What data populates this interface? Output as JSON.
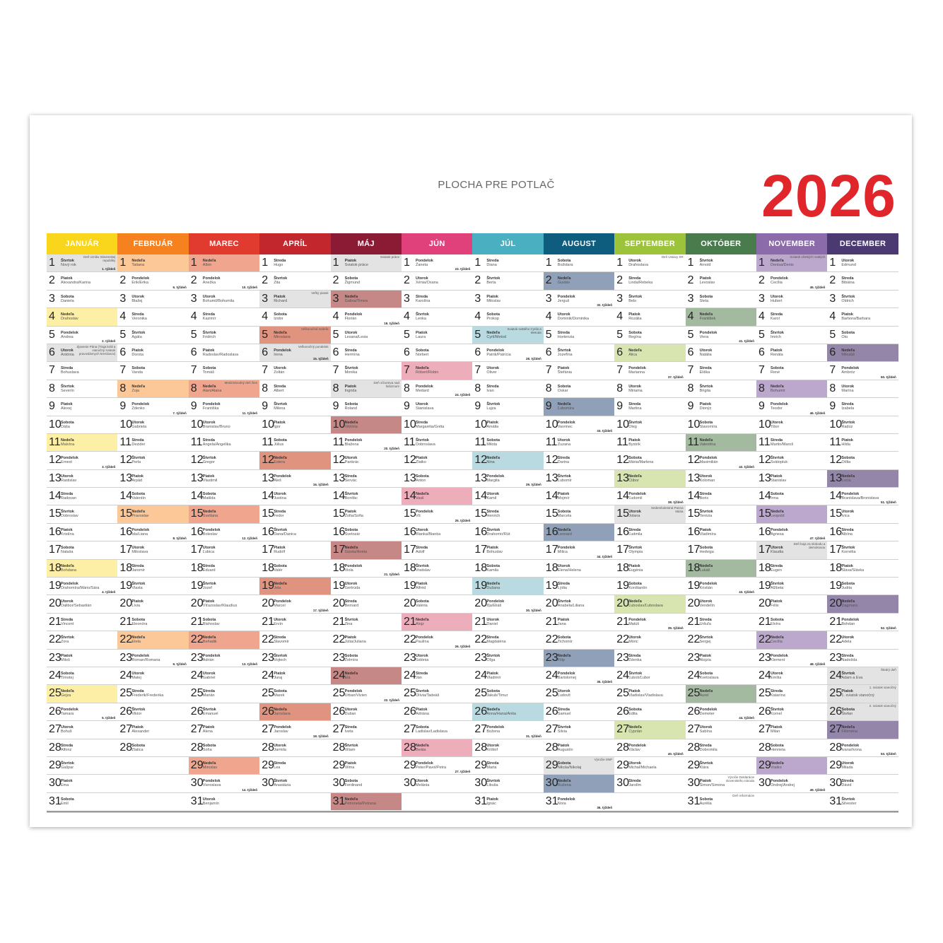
{
  "title": "PLOCHA PRE POTLAČ",
  "year": "2026",
  "week_label": "týždeň",
  "weekdays": [
    "Nedeľa",
    "Pondelok",
    "Utorok",
    "Streda",
    "Štvrtok",
    "Piatok",
    "Sobota"
  ],
  "holiday_color": "#e3e3e3",
  "months": [
    {
      "name": "JANUÁR",
      "color": "#f9d51b",
      "sunday": "#fdefa6",
      "names": [
        "Nový rok",
        "Alexandra/Karina",
        "Daniela",
        "Drahoslav",
        "Andrea",
        "Antónia",
        "Bohuslava",
        "Severín",
        "Alexej",
        "Dáša",
        "Malvína",
        "Ernest",
        "Rastislav",
        "Radovan",
        "Dobroslav",
        "Kristína",
        "Nataša",
        "Bohdana",
        "Drahomíra/Mário/Sára",
        "Dalibor/Sebastián",
        "Vincent",
        "Zora",
        "Miloš",
        "Timotej",
        "Gejza",
        "Tamara",
        "Bohuš",
        "Alfonz",
        "Gašpar",
        "Ema",
        "Emil"
      ],
      "holidays": [
        1,
        6
      ],
      "notes": {
        "1": "Deň vzniku Slovenskej republiky",
        "6": "Zjavenie Pána (Traja králi a vianočný sviatok pravoslávnych kresťanov)"
      }
    },
    {
      "name": "FEBRUÁR",
      "color": "#f5821f",
      "sunday": "#fcc898",
      "names": [
        "Tatiana",
        "Erik/Erika",
        "Blažej",
        "Veronika",
        "Agáta",
        "Dorota",
        "Vanda",
        "Zoja",
        "Zdenko",
        "Gabriela",
        "Dezider",
        "Perla",
        "Arpád",
        "Valentín",
        "Pravoslav",
        "Ida/Liana",
        "Miloslava",
        "Jaromír",
        "Vlasta",
        "Lívia",
        "Eleonóra",
        "Etela",
        "Roman/Romana",
        "Matej",
        "Frederik/Frederika",
        "Viktor",
        "Alexander",
        "Zlatica"
      ],
      "holidays": [],
      "notes": {}
    },
    {
      "name": "MAREC",
      "color": "#e03b2e",
      "sunday": "#efa58e",
      "names": [
        "Albín",
        "Anežka",
        "Bohumil/Bohumila",
        "Kazimír",
        "Fridrich",
        "Radoslav/Radoslava",
        "Tomáš",
        "Alan/Alana",
        "Františka",
        "Branislav/Bruno",
        "Angela/Angelika",
        "Gregor",
        "Vlastimil",
        "Matilda",
        "Svetlana",
        "Boleslav",
        "Ľubica",
        "Eduard",
        "Jozef",
        "Víťazoslav/Klaudius",
        "Blahoslav",
        "Beňadik",
        "Adrián",
        "Gabriel",
        "Marián",
        "Emanuel",
        "Alena",
        "Soňa",
        "Miroslav",
        "Vieroslava",
        "Benjamín"
      ],
      "holidays": [],
      "notes": {
        "8": "Medzinárodný deň žien"
      }
    },
    {
      "name": "APRÍL",
      "color": "#c1272d",
      "sunday": "#e0937e",
      "names": [
        "Hugo",
        "Zita",
        "Richard",
        "Izidor",
        "Miroslava",
        "Irena",
        "Zoltán",
        "Albert",
        "Milena",
        "Igor",
        "Július",
        "Estera",
        "Aleš",
        "Justína",
        "Fedor",
        "Dana/Danica",
        "Rudolf",
        "Valér",
        "Jela",
        "Marcel",
        "Ervín",
        "Slavomír",
        "Vojtech",
        "Juraj",
        "Marek",
        "Jaroslava",
        "Jaroslav",
        "Jarmila",
        "Lea",
        "Anastázia"
      ],
      "holidays": [
        3,
        6
      ],
      "notes": {
        "3": "Veľký piatok",
        "5": "Veľkonočná nedeľa",
        "6": "Veľkonočný pondelok"
      }
    },
    {
      "name": "MÁJ",
      "color": "#8b1a35",
      "sunday": "#c68886",
      "names": [
        "Sviatok práce",
        "Žigmund",
        "Galina/Timea",
        "Florián",
        "Lesana/Lesia",
        "Hermína",
        "Monika",
        "Ingrida",
        "Roland",
        "Viktória",
        "Blažena",
        "Pankrác",
        "Servác",
        "Bonifác",
        "Žofia/Sofia",
        "Svetozár",
        "Gizela/Aneta",
        "Viola",
        "Gertrúda",
        "Bernard",
        "Zina",
        "Júlia/Juliana",
        "Želmíra",
        "Ela",
        "Urban/Vivien",
        "Dušan",
        "Iveta",
        "Viliam",
        "Vilma",
        "Ferdinand",
        "Petronela/Petrana"
      ],
      "holidays": [
        1,
        8
      ],
      "notes": {
        "1": "Sviatok práce",
        "8": "Deň víťazstva nad fašizmom"
      }
    },
    {
      "name": "JÚN",
      "color": "#e0417a",
      "sunday": "#eeadbb",
      "names": [
        "Žaneta",
        "Xénia/Oxana",
        "Karolína",
        "Lenka",
        "Laura",
        "Norbert",
        "Róbert/Robin",
        "Medard",
        "Stanislava",
        "Margaréta/Gréta",
        "Dobroslava",
        "Zlatko",
        "Anton",
        "Vasil",
        "Vít",
        "Blanka/Bianka",
        "Adolf",
        "Vratislav",
        "Alfréd",
        "Valéria",
        "Alojz",
        "Paulína",
        "Sidónia",
        "Ján",
        "Olívia/Tadeáš",
        "Adriána",
        "Ladislav/Ladislava",
        "Beáta",
        "Peter/Pavol/Petra",
        "Melánia"
      ],
      "holidays": [],
      "notes": {}
    },
    {
      "name": "JÚL",
      "color": "#4aafc0",
      "sunday": "#b8dae0",
      "names": [
        "Diana",
        "Berta",
        "Miloslav",
        "Prokop",
        "Cyril/Metod",
        "Patrik/Patrícia",
        "Oliver",
        "Ivan",
        "Lujza",
        "Amália",
        "Milota",
        "Nina",
        "Margita",
        "Kamil",
        "Henrich",
        "Drahomír/Rút",
        "Bohuslav",
        "Kamila",
        "Dušana",
        "Iľja/Eliáš",
        "Daniel",
        "Magdaléna",
        "Oľga",
        "Vladimír",
        "Jakub/Timur",
        "Anna/Hana/Anita",
        "Božena",
        "Krištof",
        "Marta",
        "Libuša",
        "Ignác"
      ],
      "holidays": [],
      "notes": {
        "5": "Sviatok svätého Cyrila a Metoda"
      }
    },
    {
      "name": "AUGUST",
      "color": "#0f5d7e",
      "sunday": "#8fa0b8",
      "names": [
        "Božidara",
        "Gustáv",
        "Jerguš",
        "Dominik/Dominika",
        "Hortenzia",
        "Jozefína",
        "Štefánia",
        "Oskar",
        "Ľubomíra",
        "Vavrinec",
        "Zuzana",
        "Darina",
        "Ľubomír",
        "Mojmír",
        "Marcela",
        "Leonard",
        "Milica",
        "Elena/Helena",
        "Lýdia",
        "Anabela/Liliana",
        "Jana",
        "Tichomír",
        "Filip",
        "Bartolomej",
        "Ľudovít",
        "Samuel",
        "Silvia",
        "Augustín",
        "Nikola/Nikolaj",
        "Ružena",
        "Nora"
      ],
      "holidays": [
        29
      ],
      "notes": {
        "29": "Výročie SNP"
      }
    },
    {
      "name": "SEPTEMBER",
      "color": "#9dc33b",
      "sunday": "#d8e5b1",
      "names": [
        "Drahoslava",
        "Linda/Rebeka",
        "Belo",
        "Rozália",
        "Regína",
        "Alica",
        "Marianna",
        "Miriama",
        "Martina",
        "Oleg",
        "Bystrík",
        "Mária/Marlena",
        "Ctibor",
        "Ľudomil",
        "Jolana",
        "Ľudmila",
        "Olympia",
        "Eugénia",
        "Konštantín",
        "Ľuboslav/Ľuboslava",
        "Matúš",
        "Móric",
        "Zdenka",
        "Ľuboš/Ľubor",
        "Vladislav/Vladislava",
        "Edita",
        "Cyprián",
        "Václav",
        "Michal/Michaela",
        "Jarolím"
      ],
      "holidays": [
        15
      ],
      "notes": {
        "1": "Deň Ústavy SR",
        "15": "Sedembolestná Panna Mária"
      }
    },
    {
      "name": "OKTÓBER",
      "color": "#4a7b4c",
      "sunday": "#a3b9a0",
      "names": [
        "Arnold",
        "Levoslav",
        "Stela",
        "František",
        "Viera",
        "Natália",
        "Eliška",
        "Brigita",
        "Dionýz",
        "Slavomíra",
        "Valentína",
        "Maximilián",
        "Koloman",
        "Boris",
        "Terézia",
        "Vladimíra",
        "Hedviga",
        "Lukáš",
        "Kristián",
        "Vendelín",
        "Uršuľa",
        "Sergej",
        "Alojzia",
        "Kvetoslava",
        "Aurel",
        "Demeter",
        "Sabína",
        "Dobromila",
        "Klára",
        "Šimon/Simona",
        "Aurélia"
      ],
      "holidays": [],
      "notes": {
        "30": "Výročie Deklarácie slovenského národa",
        "31": "Deň reformácie"
      }
    },
    {
      "name": "NOVEMBER",
      "color": "#8b6ba9",
      "sunday": "#bca7cd",
      "names": [
        "Denisa/Denis",
        "Cecília",
        "Hubert",
        "Karol",
        "Imrich",
        "Renáta",
        "René",
        "Bohumír",
        "Teodor",
        "Tibor",
        "Martin/Maroš",
        "Svätopluk",
        "Stanislav",
        "Irma",
        "Leopold",
        "Agnesa",
        "Klaudia",
        "Eugen",
        "Alžbeta",
        "Félix",
        "Elvíra",
        "Cecília",
        "Klement",
        "Emília",
        "Katarína",
        "Kornel",
        "Milan",
        "Henrieta",
        "Vratko",
        "Ondrej/Andrej"
      ],
      "holidays": [
        17
      ],
      "notes": {
        "1": "Sviatok všetkých svätých",
        "17": "Deň boja za slobodu a demokraciu"
      }
    },
    {
      "name": "DECEMBER",
      "color": "#4b3a72",
      "sunday": "#9486a9",
      "names": [
        "Edmund",
        "Bibiána",
        "Oldrich",
        "Barbora/Barbara",
        "Oto",
        "Mikuláš",
        "Ambróz",
        "Marína",
        "Izabela",
        "Radúz",
        "Hilda",
        "Otília",
        "Lucia",
        "Branislava/Bronislava",
        "Ivica",
        "Albína",
        "Kornélia",
        "Sláva/Slávka",
        "Judita",
        "Dagmara",
        "Bohdan",
        "Adela",
        "Nadežda",
        "Adam a Eva",
        "1. sviatok vianočný",
        "Štefan",
        "Filoména",
        "Ivana/Ivona",
        "Milada",
        "Dávid",
        "Silvester"
      ],
      "holidays": [
        24,
        25,
        26
      ],
      "notes": {
        "24": "Štedrý deň",
        "25": "1. sviatok vianočný",
        "26": "2. sviatok vianočný"
      }
    }
  ]
}
